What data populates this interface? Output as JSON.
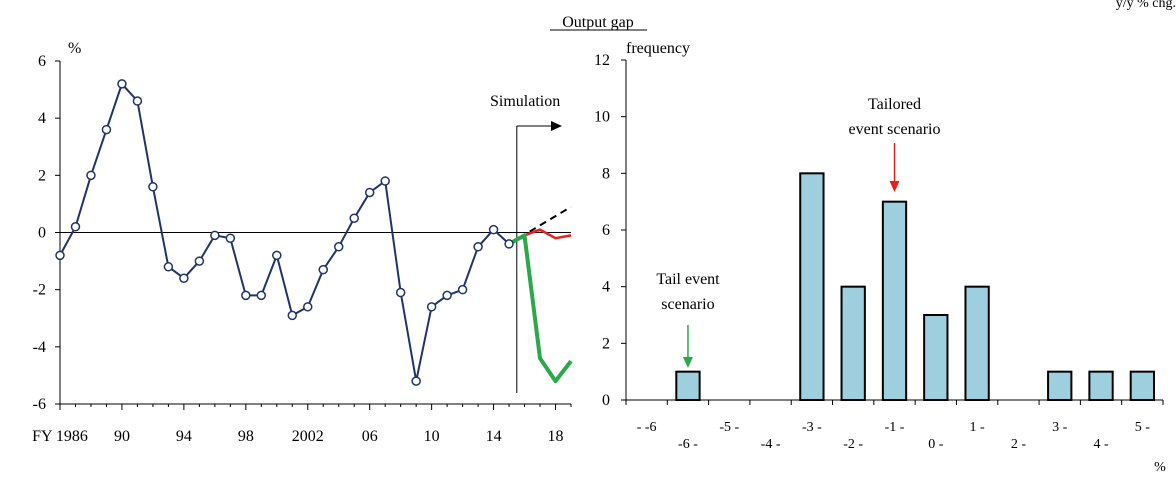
{
  "header": {
    "title": "Output gap",
    "corner_note": "y/y % chg."
  },
  "chart_data": [
    {
      "type": "line",
      "ylabel": "%",
      "ylim": [
        -6,
        6
      ],
      "yticks": [
        6,
        4,
        2,
        0,
        -2,
        -4,
        -6
      ],
      "xlim": [
        1986,
        2019
      ],
      "xtick_labels": [
        {
          "x": 1986,
          "label": "FY 1986"
        },
        {
          "x": 1990,
          "label": "90"
        },
        {
          "x": 1994,
          "label": "94"
        },
        {
          "x": 1998,
          "label": "98"
        },
        {
          "x": 2002,
          "label": "2002"
        },
        {
          "x": 2006,
          "label": "06"
        },
        {
          "x": 2010,
          "label": "10"
        },
        {
          "x": 2014,
          "label": "14"
        },
        {
          "x": 2018,
          "label": "18"
        }
      ],
      "annotation": "Simulation",
      "simulation_start": 2015.5,
      "series": [
        {
          "role": "historical",
          "color": "#1f3468",
          "markers": true,
          "x": [
            1986,
            1987,
            1988,
            1989,
            1990,
            1991,
            1992,
            1993,
            1994,
            1995,
            1996,
            1997,
            1998,
            1999,
            2000,
            2001,
            2002,
            2003,
            2004,
            2005,
            2006,
            2007,
            2008,
            2009,
            2010,
            2011,
            2012,
            2013,
            2014,
            2015
          ],
          "y": [
            -0.8,
            0.2,
            2.0,
            3.6,
            5.2,
            4.6,
            1.6,
            -1.2,
            -1.6,
            -1.0,
            -0.1,
            -0.2,
            -2.2,
            -2.2,
            -0.8,
            -2.9,
            -2.6,
            -1.3,
            -0.5,
            0.5,
            1.4,
            1.8,
            -2.1,
            -5.2,
            -2.6,
            -2.2,
            -2.0,
            -0.5,
            0.1,
            -0.4
          ]
        },
        {
          "role": "baseline",
          "color": "#000000",
          "dashed": true,
          "x": [
            2015,
            2019
          ],
          "y": [
            -0.4,
            0.9
          ]
        },
        {
          "role": "tailored",
          "color": "#e8201a",
          "x": [
            2015,
            2016,
            2017,
            2018,
            2019
          ],
          "y": [
            -0.4,
            -0.1,
            0.1,
            -0.2,
            -0.1
          ]
        },
        {
          "role": "tail",
          "color": "#2aa84a",
          "x": [
            2015,
            2016,
            2017,
            2018,
            2019
          ],
          "y": [
            -0.4,
            -0.1,
            -4.4,
            -5.2,
            -4.5
          ]
        }
      ]
    },
    {
      "type": "bar",
      "ylabel": "frequency",
      "xlabel": "%",
      "ylim": [
        0,
        12
      ],
      "yticks": [
        12,
        10,
        8,
        6,
        4,
        2,
        0
      ],
      "bar_color": "#9ecfde",
      "categories": [
        "- -6",
        "-6 -",
        "-5 -",
        "-4 -",
        "-3 -",
        "-2 -",
        "-1 -",
        "0 -",
        "1 -",
        "2 -",
        "3 -",
        "4 -",
        "5 -"
      ],
      "values": [
        0,
        1,
        0,
        0,
        8,
        4,
        7,
        3,
        4,
        0,
        1,
        1,
        1
      ],
      "annotations": [
        {
          "lines": [
            "Tailored",
            "event scenario"
          ],
          "arrow_color": "#e8201a",
          "bar_index": 6
        },
        {
          "lines": [
            "Tail event",
            "scenario"
          ],
          "arrow_color": "#2aa84a",
          "bar_index": 1
        }
      ]
    }
  ]
}
